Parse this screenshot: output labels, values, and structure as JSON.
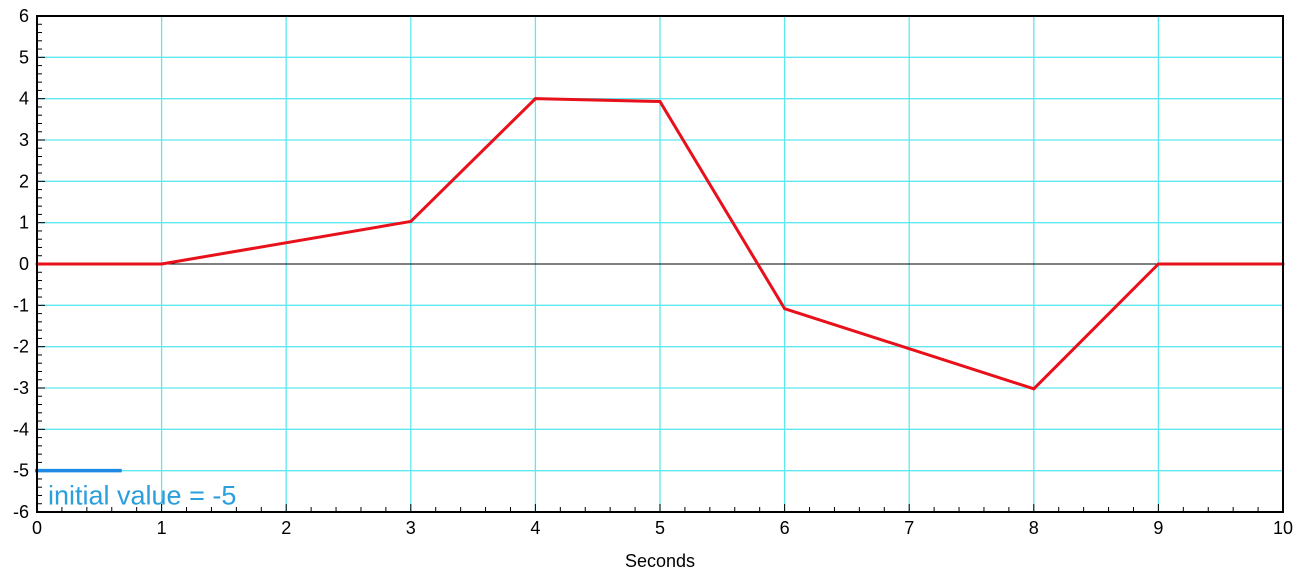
{
  "chart_data": {
    "type": "line",
    "xlabel": "Seconds",
    "ylabel": "",
    "xlim": [
      0,
      10
    ],
    "ylim": [
      -6,
      6
    ],
    "x_ticks": [
      "0",
      "1",
      "2",
      "3",
      "4",
      "5",
      "6",
      "7",
      "8",
      "9",
      "10"
    ],
    "y_ticks": [
      "6",
      "5",
      "4",
      "3",
      "2",
      "1",
      "0",
      "-1",
      "-2",
      "-3",
      "-4",
      "-5",
      "-6"
    ],
    "x_tick_values": [
      0,
      1,
      2,
      3,
      4,
      5,
      6,
      7,
      8,
      9,
      10
    ],
    "y_tick_values": [
      6,
      5,
      4,
      3,
      2,
      1,
      0,
      -1,
      -2,
      -3,
      -4,
      -5,
      -6
    ],
    "grid": true,
    "series": [
      {
        "color": "#e8101a",
        "x": [
          0,
          1,
          3,
          4,
          5,
          6,
          8,
          9,
          10
        ],
        "y": [
          0,
          0,
          1.03,
          4.0,
          3.93,
          -1.08,
          -3.02,
          0,
          0
        ]
      }
    ],
    "annotation": {
      "text": "initial value = -5",
      "value": -5,
      "x_end": 0.68,
      "color": "#2a9fdc",
      "line_color": "#1e88e5"
    },
    "colors": {
      "grid": "#5ee8ee",
      "zero_line": "#000000",
      "axes": "#000000"
    }
  }
}
